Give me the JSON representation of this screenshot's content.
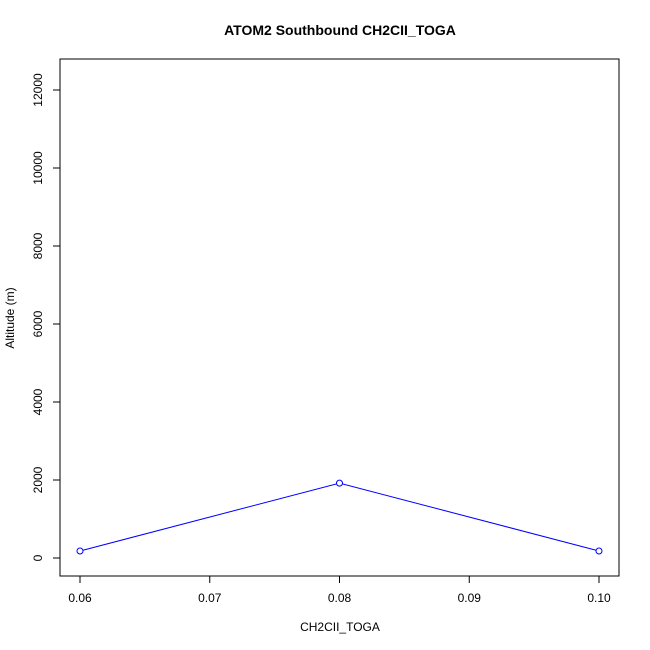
{
  "chart_data": {
    "type": "line",
    "title": "ATOM2 Southbound CH2CII_TOGA",
    "xlabel": "CH2CII_TOGA",
    "ylabel": "Altitude (m)",
    "xlim": [
      0.06,
      0.1
    ],
    "ylim": [
      0,
      12000
    ],
    "x_ticks": [
      "0.06",
      "0.07",
      "0.08",
      "0.09",
      "0.10"
    ],
    "y_ticks": [
      "0",
      "2000",
      "4000",
      "6000",
      "8000",
      "10000",
      "12000"
    ],
    "grid": false,
    "legend": "none",
    "series": [
      {
        "color": "#0000ff",
        "marker": "open-circle",
        "points": [
          {
            "x": 0.06,
            "y": 180
          },
          {
            "x": 0.08,
            "y": 1920
          },
          {
            "x": 0.1,
            "y": 180
          }
        ]
      }
    ]
  }
}
